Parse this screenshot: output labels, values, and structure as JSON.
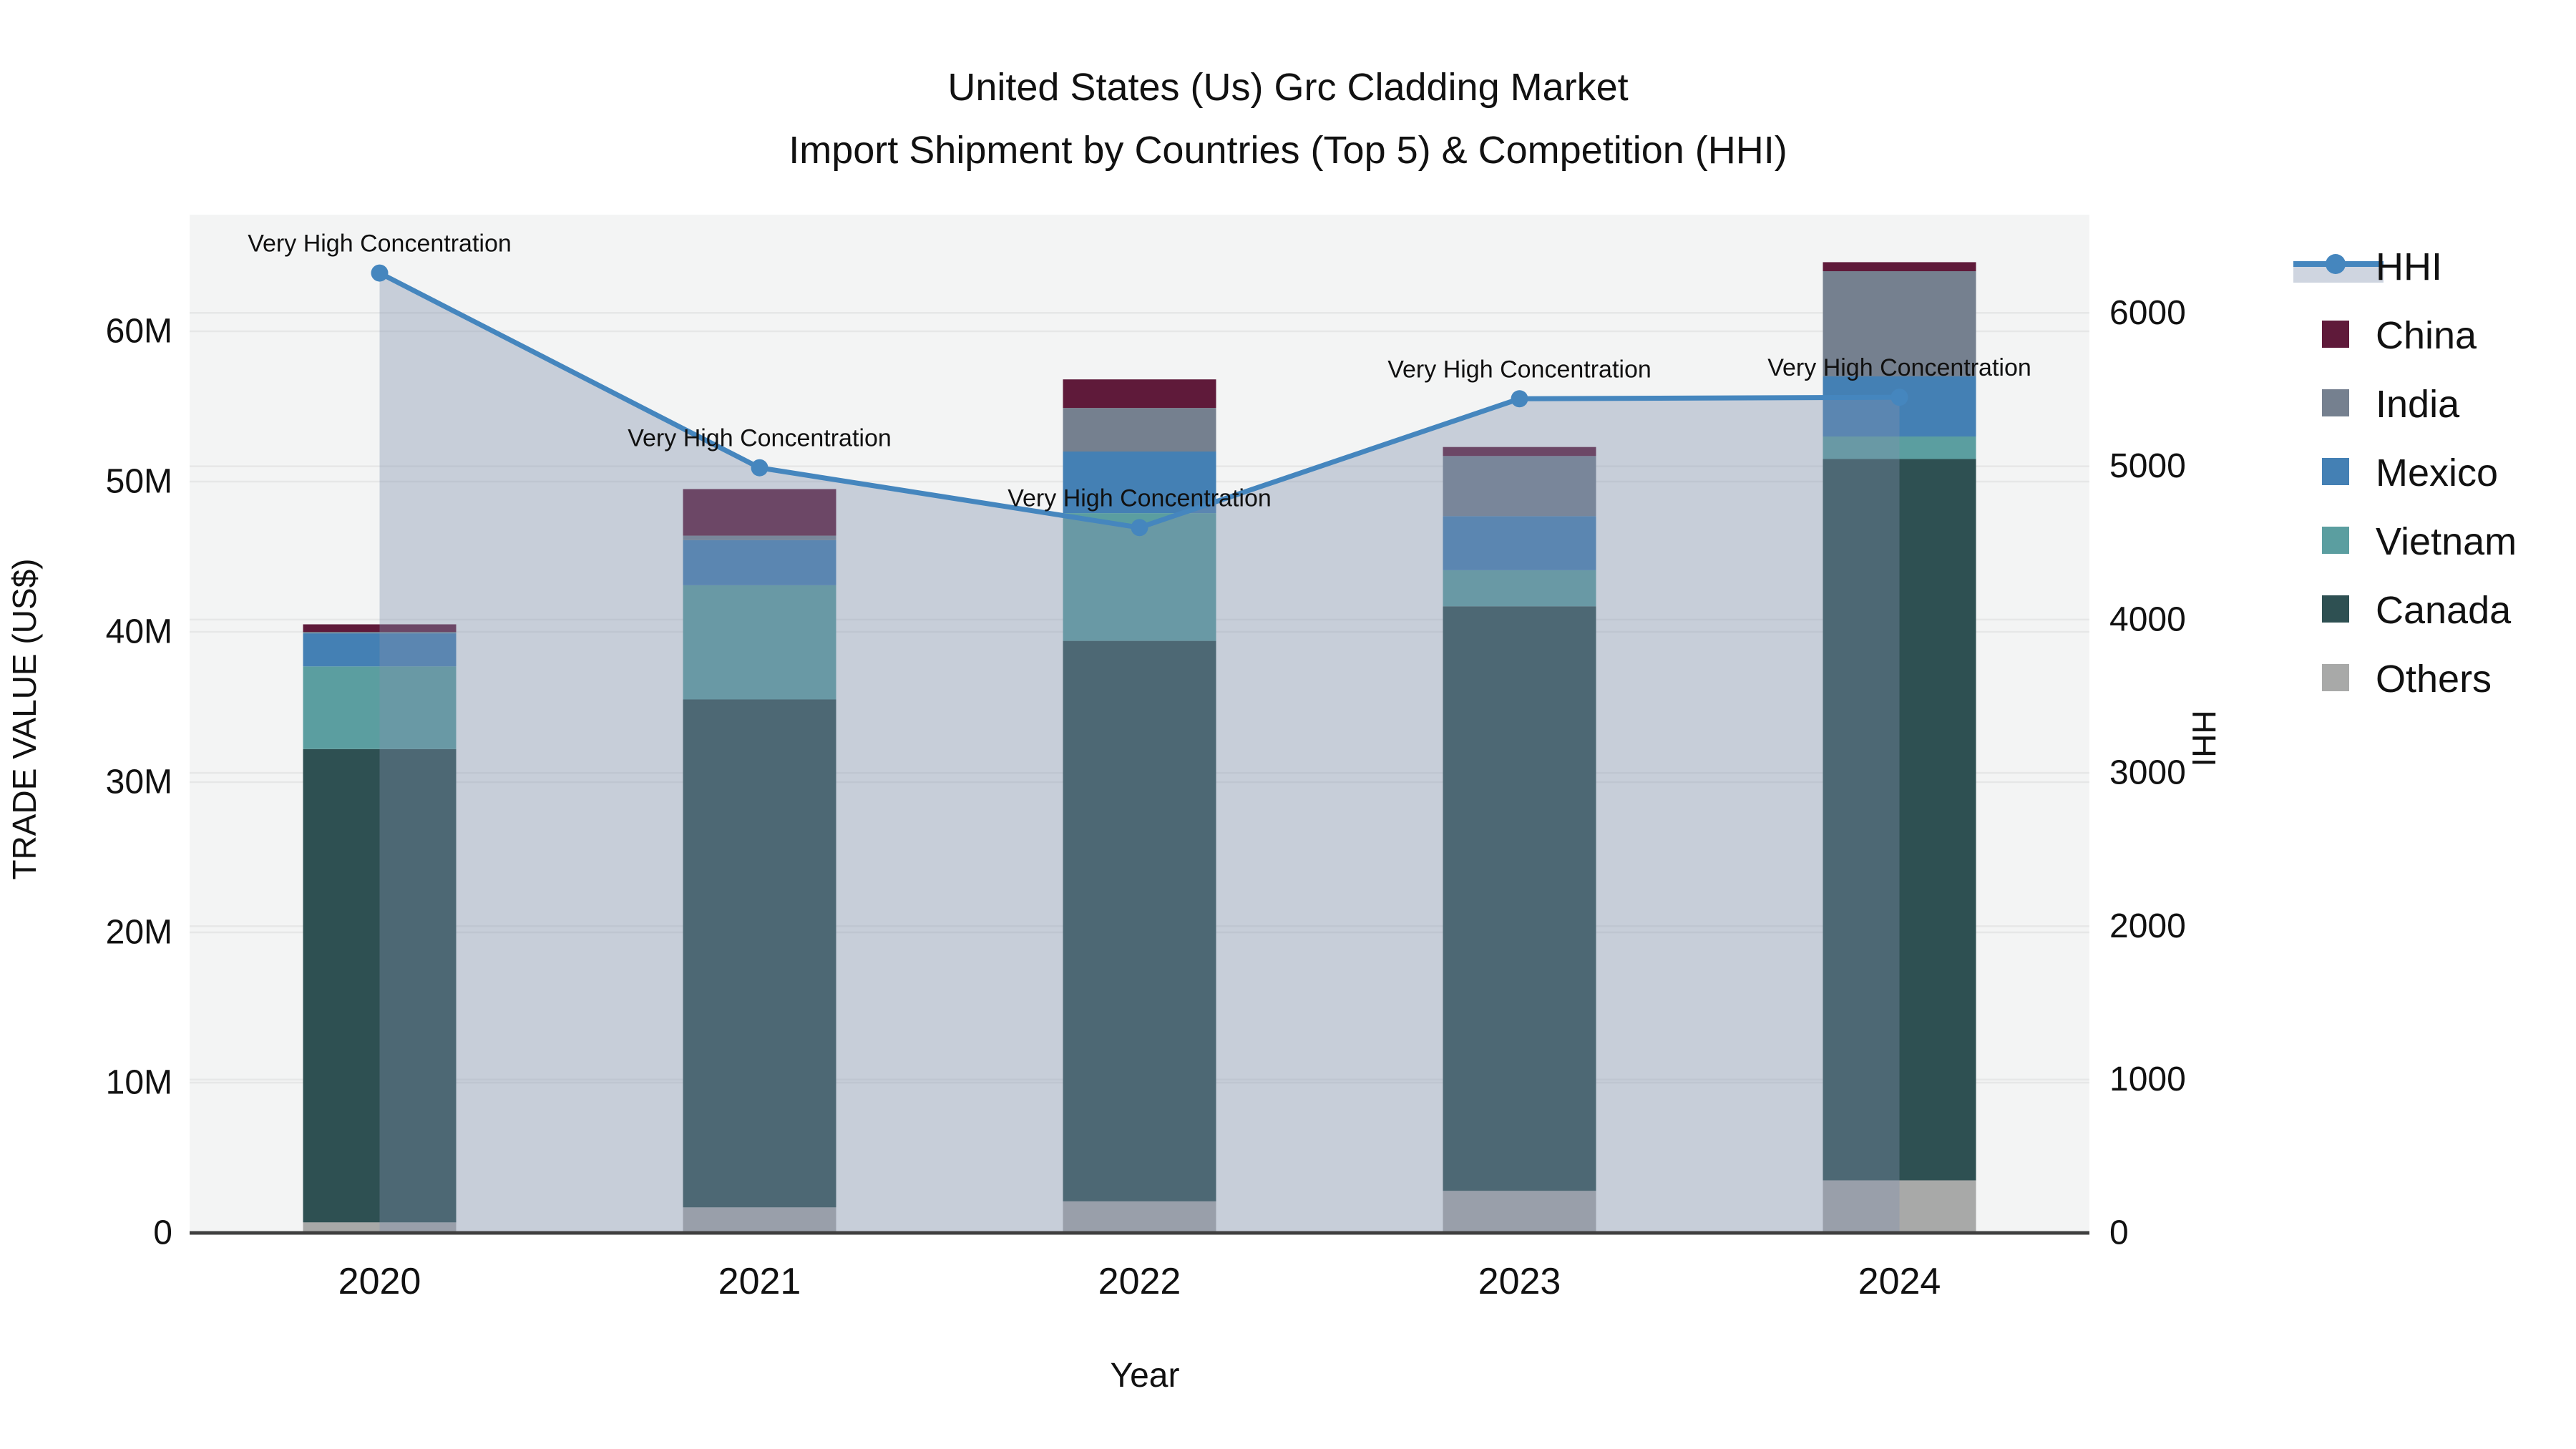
{
  "title": {
    "line1": "United States (Us) Grc Cladding Market",
    "line2": "Import Shipment by Countries (Top 5) & Competition (HHI)"
  },
  "axes": {
    "x": {
      "label": "Year",
      "ticks": [
        "2020",
        "2021",
        "2022",
        "2023",
        "2024"
      ]
    },
    "y_left": {
      "label": "TRADE VALUE (US$)",
      "ticks": [
        "0",
        "10M",
        "20M",
        "30M",
        "40M",
        "50M",
        "60M"
      ],
      "range_musd": [
        0,
        67.7
      ]
    },
    "y_right": {
      "label": "HHI",
      "ticks": [
        "0",
        "1000",
        "2000",
        "3000",
        "4000",
        "5000",
        "6000"
      ],
      "range": [
        0,
        6640
      ]
    }
  },
  "legend": {
    "entries": [
      {
        "label": "HHI",
        "type": "line",
        "color": "#4586BE"
      },
      {
        "label": "China",
        "type": "square",
        "color": "#5F1A3A"
      },
      {
        "label": "India",
        "type": "square",
        "color": "#75808F"
      },
      {
        "label": "Mexico",
        "type": "square",
        "color": "#4480B4"
      },
      {
        "label": "Vietnam",
        "type": "square",
        "color": "#5B9EA0"
      },
      {
        "label": "Canada",
        "type": "square",
        "color": "#2E5052"
      },
      {
        "label": "Others",
        "type": "square",
        "color": "#A8A9A8"
      }
    ]
  },
  "annotation_text": "Very High Concentration",
  "chart_data": {
    "type": "combo_stacked_bar_line",
    "categories": [
      "2020",
      "2021",
      "2022",
      "2023",
      "2024"
    ],
    "bar_unit": "M US$ (trade value)",
    "bar_series": [
      {
        "name": "China",
        "color": "#5F1A3A",
        "values": [
          0.5,
          3.1,
          1.9,
          0.6,
          0.6
        ]
      },
      {
        "name": "India",
        "color": "#75808F",
        "values": [
          0.1,
          0.3,
          2.9,
          4.0,
          7.0
        ]
      },
      {
        "name": "Mexico",
        "color": "#4480B4",
        "values": [
          2.2,
          3.0,
          4.1,
          3.6,
          4.0
        ]
      },
      {
        "name": "Vietnam",
        "color": "#5B9EA0",
        "values": [
          5.5,
          7.6,
          8.5,
          2.4,
          1.5
        ]
      },
      {
        "name": "Canada",
        "color": "#2E5052",
        "values": [
          31.5,
          33.8,
          37.3,
          38.9,
          48.0
        ]
      },
      {
        "name": "Others",
        "color": "#A8A9A8",
        "values": [
          0.7,
          1.7,
          2.1,
          2.8,
          3.5
        ]
      }
    ],
    "stack_order_bottom_to_top": [
      "Others",
      "Canada",
      "Vietnam",
      "Mexico",
      "India",
      "China"
    ],
    "bar_totals_musd": [
      40.6,
      49.5,
      56.8,
      52.3,
      64.6
    ],
    "line_series": {
      "name": "HHI",
      "color": "#4586BE",
      "fill_color": "rgba(128,145,173,0.38)",
      "values": [
        6260,
        4990,
        4600,
        5440,
        5450
      ],
      "point_annotations": [
        "Very High Concentration",
        "Very High Concentration",
        "Very High Concentration",
        "Very High Concentration",
        "Very High Concentration"
      ]
    },
    "grid": true,
    "legend_position": "right"
  },
  "colors": {
    "plot_bg": "#F3F4F4",
    "grid_line": "#E6E7E7",
    "axis_line": "#3F3F3F",
    "text": "#111111"
  }
}
